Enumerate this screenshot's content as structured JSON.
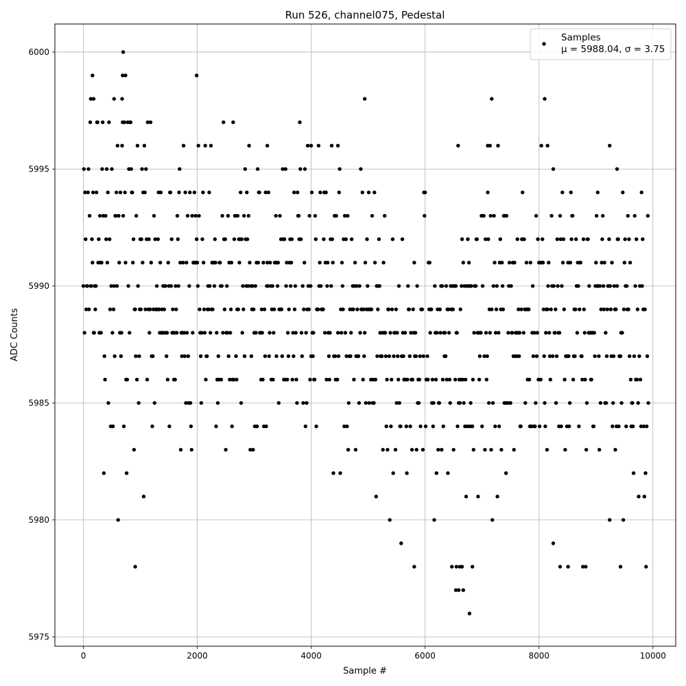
{
  "chart_data": {
    "type": "scatter",
    "title": "Run 526, channel075, Pedestal",
    "xlabel": "Sample #",
    "ylabel": "ADC Counts",
    "xlim": [
      -500,
      10400
    ],
    "ylim": [
      5974.6,
      6001.2
    ],
    "xticks": [
      0,
      2000,
      4000,
      6000,
      8000,
      10000
    ],
    "yticks": [
      5975,
      5980,
      5985,
      5990,
      5995,
      6000
    ],
    "grid": true,
    "legend_position": "top-right",
    "series": [
      {
        "name": "Samples",
        "legend_line1": "Samples",
        "legend_line2": "μ = 5988.04, σ = 3.75",
        "color": "#000000",
        "mean": 5988.04,
        "sigma": 3.75,
        "x_range": [
          0,
          9920
        ],
        "y_min": 5976,
        "y_max": 6000,
        "outliers": [
          {
            "x": 700,
            "y": 6000
          },
          {
            "x": 160,
            "y": 5999
          },
          {
            "x": 690,
            "y": 5999
          },
          {
            "x": 740,
            "y": 5999
          },
          {
            "x": 1990,
            "y": 5999
          },
          {
            "x": 4940,
            "y": 5998
          },
          {
            "x": 7170,
            "y": 5998
          },
          {
            "x": 8100,
            "y": 5998
          },
          {
            "x": 130,
            "y": 5998
          },
          {
            "x": 180,
            "y": 5998
          },
          {
            "x": 540,
            "y": 5998
          },
          {
            "x": 680,
            "y": 5998
          },
          {
            "x": 3230,
            "y": 5996
          },
          {
            "x": 9240,
            "y": 5996
          },
          {
            "x": 8150,
            "y": 5996
          },
          {
            "x": 4000,
            "y": 5996
          },
          {
            "x": 4470,
            "y": 5996
          },
          {
            "x": 7100,
            "y": 5996
          },
          {
            "x": 7140,
            "y": 5996
          },
          {
            "x": 9370,
            "y": 5995
          },
          {
            "x": 8250,
            "y": 5995
          },
          {
            "x": 910,
            "y": 5978
          },
          {
            "x": 5810,
            "y": 5978
          },
          {
            "x": 6470,
            "y": 5978
          },
          {
            "x": 6550,
            "y": 5978
          },
          {
            "x": 6610,
            "y": 5978
          },
          {
            "x": 6650,
            "y": 5978
          },
          {
            "x": 6830,
            "y": 5978
          },
          {
            "x": 8370,
            "y": 5978
          },
          {
            "x": 8510,
            "y": 5978
          },
          {
            "x": 9430,
            "y": 5978
          },
          {
            "x": 6540,
            "y": 5977
          },
          {
            "x": 6590,
            "y": 5977
          },
          {
            "x": 6670,
            "y": 5977
          },
          {
            "x": 6780,
            "y": 5976
          }
        ]
      }
    ]
  }
}
